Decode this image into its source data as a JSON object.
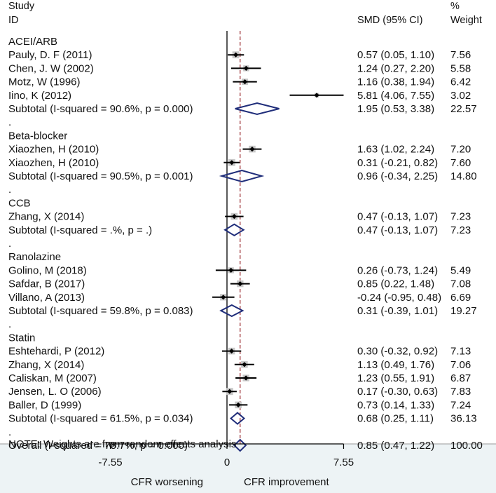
{
  "chart_data": {
    "type": "forest",
    "header": {
      "study_label": "Study",
      "id_label": "ID",
      "effect_label": "SMD (95% CI)",
      "weight_label_1": "%",
      "weight_label_2": "Weight"
    },
    "rows": [
      {
        "kind": "group",
        "label": "ACEI/ARB"
      },
      {
        "kind": "study",
        "label": "Pauly, D. F (2011)",
        "est": 0.57,
        "lo": 0.05,
        "hi": 1.1,
        "ci_text": "0.57 (0.05, 1.10)",
        "weight_text": "7.56",
        "weight": 7.56
      },
      {
        "kind": "study",
        "label": "Chen, J. W (2002)",
        "est": 1.24,
        "lo": 0.27,
        "hi": 2.2,
        "ci_text": "1.24 (0.27, 2.20)",
        "weight_text": "5.58",
        "weight": 5.58
      },
      {
        "kind": "study",
        "label": "Motz, W (1996)",
        "est": 1.16,
        "lo": 0.38,
        "hi": 1.94,
        "ci_text": "1.16 (0.38, 1.94)",
        "weight_text": "6.42",
        "weight": 6.42
      },
      {
        "kind": "study",
        "label": "Iino, K (2012)",
        "est": 5.81,
        "lo": 4.06,
        "hi": 7.55,
        "ci_text": "5.81 (4.06, 7.55)",
        "weight_text": "3.02",
        "weight": 3.02
      },
      {
        "kind": "subtotal",
        "label": "Subtotal  (I-squared = 90.6%, p = 0.000)",
        "est": 1.95,
        "lo": 0.53,
        "hi": 3.38,
        "ci_text": "1.95 (0.53, 3.38)",
        "weight_text": "22.57"
      },
      {
        "kind": "dot",
        "label": "."
      },
      {
        "kind": "group",
        "label": "Beta-blocker"
      },
      {
        "kind": "study",
        "label": "Xiaozhen, H (2010)",
        "est": 1.63,
        "lo": 1.02,
        "hi": 2.24,
        "ci_text": "1.63 (1.02, 2.24)",
        "weight_text": "7.20",
        "weight": 7.2
      },
      {
        "kind": "study",
        "label": "Xiaozhen, H (2010)",
        "est": 0.31,
        "lo": -0.21,
        "hi": 0.82,
        "ci_text": "0.31 (-0.21, 0.82)",
        "weight_text": "7.60",
        "weight": 7.6
      },
      {
        "kind": "subtotal",
        "label": "Subtotal  (I-squared = 90.5%, p = 0.001)",
        "est": 0.96,
        "lo": -0.34,
        "hi": 2.25,
        "ci_text": "0.96 (-0.34, 2.25)",
        "weight_text": "14.80"
      },
      {
        "kind": "dot",
        "label": "."
      },
      {
        "kind": "group",
        "label": "CCB"
      },
      {
        "kind": "study",
        "label": "Zhang, X (2014)",
        "est": 0.47,
        "lo": -0.13,
        "hi": 1.07,
        "ci_text": "0.47 (-0.13, 1.07)",
        "weight_text": "7.23",
        "weight": 7.23
      },
      {
        "kind": "subtotal",
        "label": "Subtotal  (I-squared = .%, p = .)",
        "est": 0.47,
        "lo": -0.13,
        "hi": 1.07,
        "ci_text": "0.47 (-0.13, 1.07)",
        "weight_text": "7.23"
      },
      {
        "kind": "dot",
        "label": "."
      },
      {
        "kind": "group",
        "label": "Ranolazine"
      },
      {
        "kind": "study",
        "label": "Golino, M (2018)",
        "est": 0.26,
        "lo": -0.73,
        "hi": 1.24,
        "ci_text": "0.26 (-0.73, 1.24)",
        "weight_text": "5.49",
        "weight": 5.49
      },
      {
        "kind": "study",
        "label": "Safdar, B (2017)",
        "est": 0.85,
        "lo": 0.22,
        "hi": 1.48,
        "ci_text": "0.85 (0.22, 1.48)",
        "weight_text": "7.08",
        "weight": 7.08
      },
      {
        "kind": "study",
        "label": "Villano, A (2013)",
        "est": -0.24,
        "lo": -0.95,
        "hi": 0.48,
        "ci_text": "-0.24 (-0.95, 0.48)",
        "weight_text": "6.69",
        "weight": 6.69
      },
      {
        "kind": "subtotal",
        "label": "Subtotal  (I-squared = 59.8%, p = 0.083)",
        "est": 0.31,
        "lo": -0.39,
        "hi": 1.01,
        "ci_text": "0.31 (-0.39, 1.01)",
        "weight_text": "19.27"
      },
      {
        "kind": "dot",
        "label": "."
      },
      {
        "kind": "group",
        "label": "Statin"
      },
      {
        "kind": "study",
        "label": "Eshtehardi, P (2012)",
        "est": 0.3,
        "lo": -0.32,
        "hi": 0.92,
        "ci_text": "0.30 (-0.32, 0.92)",
        "weight_text": "7.13",
        "weight": 7.13
      },
      {
        "kind": "study",
        "label": "Zhang, X (2014)",
        "est": 1.13,
        "lo": 0.49,
        "hi": 1.76,
        "ci_text": "1.13 (0.49, 1.76)",
        "weight_text": "7.06",
        "weight": 7.06
      },
      {
        "kind": "study",
        "label": "Caliskan, M (2007)",
        "est": 1.23,
        "lo": 0.55,
        "hi": 1.91,
        "ci_text": "1.23 (0.55, 1.91)",
        "weight_text": "6.87",
        "weight": 6.87
      },
      {
        "kind": "study",
        "label": "Jensen, L. O (2006)",
        "est": 0.17,
        "lo": -0.3,
        "hi": 0.63,
        "ci_text": "0.17 (-0.30, 0.63)",
        "weight_text": "7.83",
        "weight": 7.83
      },
      {
        "kind": "study",
        "label": "Baller, D (1999)",
        "est": 0.73,
        "lo": 0.14,
        "hi": 1.33,
        "ci_text": "0.73 (0.14, 1.33)",
        "weight_text": "7.24",
        "weight": 7.24
      },
      {
        "kind": "subtotal",
        "label": "Subtotal  (I-squared = 61.5%, p = 0.034)",
        "est": 0.68,
        "lo": 0.25,
        "hi": 1.11,
        "ci_text": "0.68 (0.25, 1.11)",
        "weight_text": "36.13"
      },
      {
        "kind": "dot",
        "label": "."
      },
      {
        "kind": "overall",
        "label": "Overall  (I-squared = 78.7%, p = 0.000)",
        "est": 0.85,
        "lo": 0.47,
        "hi": 1.22,
        "ci_text": "0.85 (0.47, 1.22)",
        "weight_text": "100.00"
      }
    ],
    "note": "NOTE: Weights are from random effects analysis",
    "x_ticks": [
      -7.55,
      0,
      7.55
    ],
    "x_tick_labels": [
      "-7.55",
      "0",
      "7.55"
    ],
    "xlim": [
      -7.55,
      7.55
    ],
    "null_value": 0,
    "overall_line_value": 0.85,
    "left_direction_label": "CFR worsening",
    "right_direction_label": "CFR improvement",
    "colors": {
      "diamond": "#1f2d7a",
      "overall_line": "#a0383c",
      "weight_box": "#c8c8c8",
      "axis_band": "#edf3f5"
    }
  }
}
